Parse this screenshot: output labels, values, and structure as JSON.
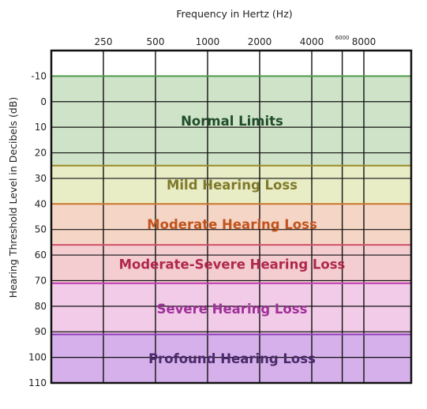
{
  "chart_data": {
    "type": "area",
    "title": "",
    "xlabel": "Frequency in Hertz (Hz)",
    "ylabel": "Hearing Threshold Level in Decibels (dB)",
    "x_ticks": [
      {
        "label": "250",
        "value": 250
      },
      {
        "label": "500",
        "value": 500
      },
      {
        "label": "1000",
        "value": 1000
      },
      {
        "label": "2000",
        "value": 2000
      },
      {
        "label": "4000",
        "value": 4000
      },
      {
        "label": "6000",
        "value": 6000
      },
      {
        "label": "8000",
        "value": 8000
      }
    ],
    "y_ticks": [
      -10,
      0,
      10,
      20,
      30,
      40,
      50,
      60,
      70,
      80,
      90,
      100,
      110
    ],
    "ylim": [
      -20,
      110
    ],
    "y_inverted": true,
    "grid": true,
    "bands": [
      {
        "name": "Normal Limits",
        "from": -10,
        "to": 25,
        "fill": "#cfe3c8",
        "line": "#4e9a4e",
        "text": "#1f4d2a"
      },
      {
        "name": "Mild Hearing Loss",
        "from": 25,
        "to": 40,
        "fill": "#e9edc5",
        "line": "#9a8a2a",
        "text": "#7f7a2a"
      },
      {
        "name": "Moderate Hearing Loss",
        "from": 40,
        "to": 56,
        "fill": "#f5d5c5",
        "line": "#c8782c",
        "text": "#c0541e"
      },
      {
        "name": "Moderate-Severe Hearing Loss",
        "from": 56,
        "to": 71,
        "fill": "#f3cdd0",
        "line": "#d0506a",
        "text": "#b0284c"
      },
      {
        "name": "Severe Hearing Loss",
        "from": 71,
        "to": 91,
        "fill": "#f2cbe8",
        "line": "#c03ab0",
        "text": "#a0309a"
      },
      {
        "name": "Profound Hearing Loss",
        "from": 91,
        "to": 110,
        "fill": "#d6b0ea",
        "line": "#8a3ab8",
        "text": "#4a2a6a"
      }
    ]
  }
}
